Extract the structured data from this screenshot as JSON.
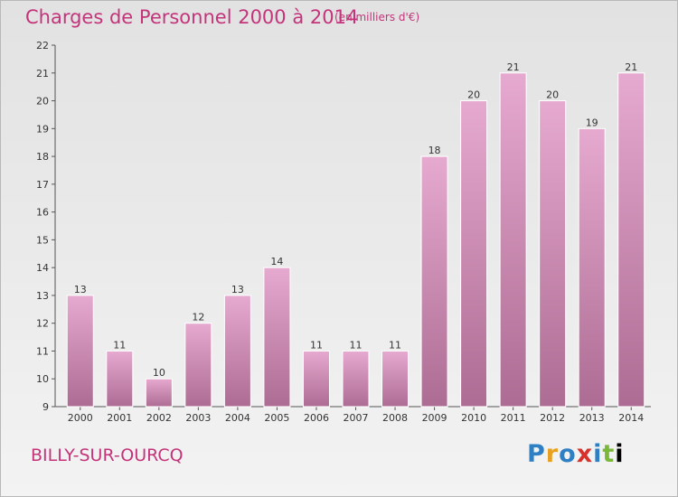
{
  "header": {
    "title": "Charges de Personnel 2000 à 2014",
    "subtitle": "(en milliers d'€)"
  },
  "footer": {
    "commune": "BILLY-SUR-OURCQ",
    "logo_text": "Proxiti"
  },
  "colors": {
    "title": "#c4347a",
    "bar_top": "#e6a9cf",
    "bar_bottom": "#ad6c93"
  },
  "chart_data": {
    "type": "bar",
    "categories": [
      "2000",
      "2001",
      "2002",
      "2003",
      "2004",
      "2005",
      "2006",
      "2007",
      "2008",
      "2009",
      "2010",
      "2011",
      "2012",
      "2013",
      "2014"
    ],
    "values": [
      13,
      11,
      10,
      12,
      13,
      14,
      11,
      11,
      11,
      18,
      20,
      21,
      20,
      19,
      21
    ],
    "ylim": [
      9,
      22
    ],
    "yticks": [
      9,
      10,
      11,
      12,
      13,
      14,
      15,
      16,
      17,
      18,
      19,
      20,
      21,
      22
    ],
    "grid": false,
    "legend": "none"
  }
}
